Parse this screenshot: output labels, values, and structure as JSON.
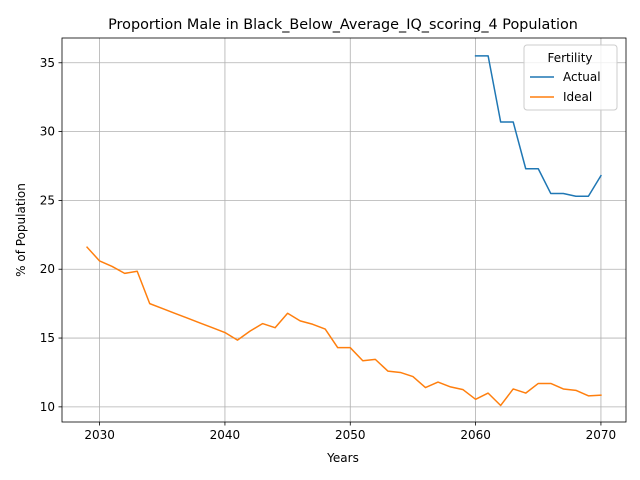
{
  "chart_data": {
    "type": "line",
    "title": "Proportion Male in Black_Below_Average_IQ_scoring_4 Population",
    "xlabel": "Years",
    "ylabel": "% of Population",
    "xlim": [
      2027,
      2072
    ],
    "ylim": [
      8.9,
      36.8
    ],
    "xticks": [
      2030,
      2040,
      2050,
      2060,
      2070
    ],
    "yticks": [
      10,
      15,
      20,
      25,
      30,
      35
    ],
    "grid": true,
    "legend": {
      "title": "Fertility",
      "placement": "top-right"
    },
    "series": [
      {
        "name": "Actual",
        "color": "#1f77b4",
        "x": [
          2060,
          2061,
          2062,
          2063,
          2064,
          2065,
          2066,
          2067,
          2068,
          2069,
          2070
        ],
        "y": [
          35.5,
          35.5,
          30.7,
          30.7,
          27.3,
          27.3,
          25.5,
          25.5,
          25.3,
          25.3,
          26.8
        ]
      },
      {
        "name": "Ideal",
        "color": "#ff7f0e",
        "x": [
          2029,
          2030,
          2031,
          2032,
          2033,
          2034,
          2035,
          2036,
          2037,
          2038,
          2039,
          2040,
          2041,
          2042,
          2043,
          2044,
          2045,
          2046,
          2047,
          2048,
          2049,
          2050,
          2051,
          2052,
          2053,
          2054,
          2055,
          2056,
          2057,
          2058,
          2059,
          2060,
          2061,
          2062,
          2063,
          2064,
          2065,
          2066,
          2067,
          2068,
          2069,
          2070
        ],
        "y": [
          21.6,
          20.6,
          20.2,
          19.7,
          19.85,
          17.5,
          17.15,
          16.8,
          16.45,
          16.1,
          15.75,
          15.4,
          14.85,
          15.5,
          16.05,
          15.75,
          16.8,
          16.25,
          16.0,
          15.65,
          14.3,
          14.3,
          13.35,
          13.45,
          12.6,
          12.5,
          12.2,
          11.4,
          11.8,
          11.45,
          11.25,
          10.55,
          11.0,
          10.1,
          11.3,
          11.0,
          11.7,
          11.7,
          11.3,
          11.2,
          10.8,
          10.85
        ]
      }
    ]
  }
}
